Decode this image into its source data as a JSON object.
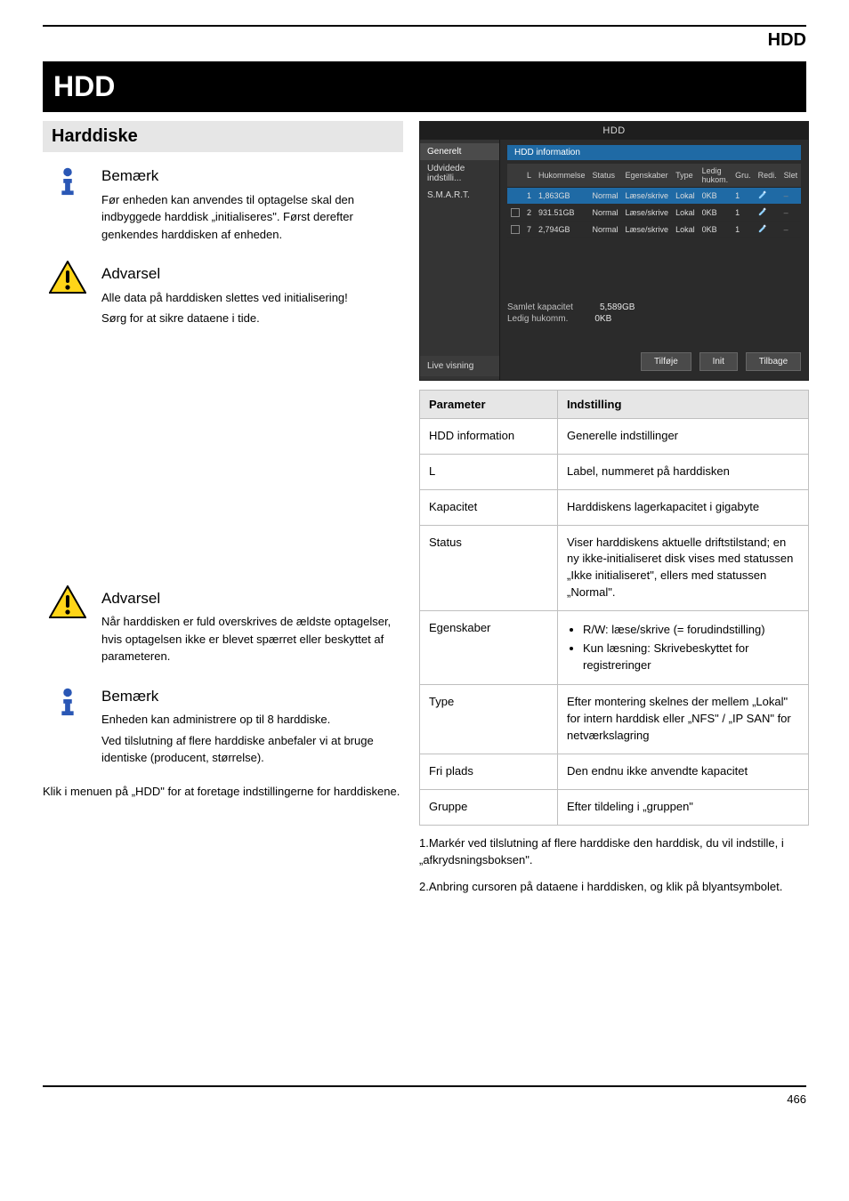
{
  "header_right": "HDD",
  "banner": "HDD",
  "left": {
    "subhead": "Harddiske",
    "info1_lines": [
      "Bemærk",
      "Før enheden kan anvendes til optagelse skal den indbyggede harddisk „initialiseres\". Først derefter genkendes harddisken af enheden.",
      ""
    ],
    "warn1_lines": [
      "Advarsel",
      "Alle data på harddisken slettes ved initialisering!",
      "Sørg for at sikre dataene i tide."
    ],
    "warn2_lines": [
      "Advarsel",
      "Når harddisken er fuld overskrives de ældste optagelser, hvis optagelsen ikke er blevet spærret eller beskyttet af parameteren."
    ],
    "info2_lines": [
      "Bemærk",
      "Enheden kan administrere op til 8 harddiske.",
      "Ved tilslutning af flere harddiske anbefaler vi at bruge identiske (producent, størrelse)."
    ],
    "closing": "Klik i menuen på „HDD\" for at foretage indstillingerne for harddiskene."
  },
  "right": {
    "params_title": [
      "Parameter",
      "Indstilling"
    ],
    "rows": [
      {
        "k": "HDD information",
        "v": "Generelle indstillinger"
      },
      {
        "k": "L",
        "v": "Label, nummeret på harddisken"
      },
      {
        "k": "Kapacitet",
        "v": "Harddiskens lagerkapacitet i gigabyte"
      },
      {
        "k": "Status",
        "v": "Viser harddiskens aktuelle driftstilstand; en ny ikke-initialiseret disk vises med statussen „Ikke initialiseret\", ellers med statussen „Normal\"."
      },
      {
        "k": "Egenskaber",
        "v": "",
        "bullets": [
          "R/W: læse/skrive (= forudindstilling)",
          "Kun læsning: Skrivebeskyttet for registreringer"
        ]
      },
      {
        "k": "Type",
        "v": "Efter montering skelnes der mellem „Lokal\" for intern harddisk eller „NFS\" / „IP SAN\" for netværkslagring"
      },
      {
        "k": "Fri plads",
        "v": "Den endnu ikke anvendte kapacitet"
      },
      {
        "k": "Gruppe",
        "v": "Efter tildeling i „gruppen\""
      }
    ],
    "after1": "1.Markér ved tilslutning af flere harddiske den harddisk, du vil indstille, i „afkrydsningsboksen\".",
    "after2": "2.Anbring cursoren på dataene i harddisken, og klik på blyantsymbolet."
  },
  "shot": {
    "title": "HDD",
    "side": [
      "Generelt",
      "Udvidede indstilli...",
      "S.M.A.R.T."
    ],
    "live": "Live visning",
    "tab": "HDD information",
    "cols": [
      "",
      "L",
      "Hukommelse",
      "Status",
      "Egenskaber",
      "Type",
      "Ledig hukom.",
      "Gru.",
      "Redi.",
      "Slet"
    ],
    "rows": [
      {
        "sel": true,
        "l": "1",
        "cap": "1,863GB",
        "st": "Normal",
        "prop": "Læse/skrive",
        "type": "Lokal",
        "free": "0KB",
        "grp": "1"
      },
      {
        "sel": false,
        "l": "2",
        "cap": "931.51GB",
        "st": "Normal",
        "prop": "Læse/skrive",
        "type": "Lokal",
        "free": "0KB",
        "grp": "1"
      },
      {
        "sel": false,
        "l": "7",
        "cap": "2,794GB",
        "st": "Normal",
        "prop": "Læse/skrive",
        "type": "Lokal",
        "free": "0KB",
        "grp": "1"
      }
    ],
    "total_label": "Samlet kapacitet",
    "total_val": "5,589GB",
    "free_label": "Ledig hukomm.",
    "free_val": "0KB",
    "btns": [
      "Tilføje",
      "Init",
      "Tilbage"
    ]
  },
  "footer": "466"
}
